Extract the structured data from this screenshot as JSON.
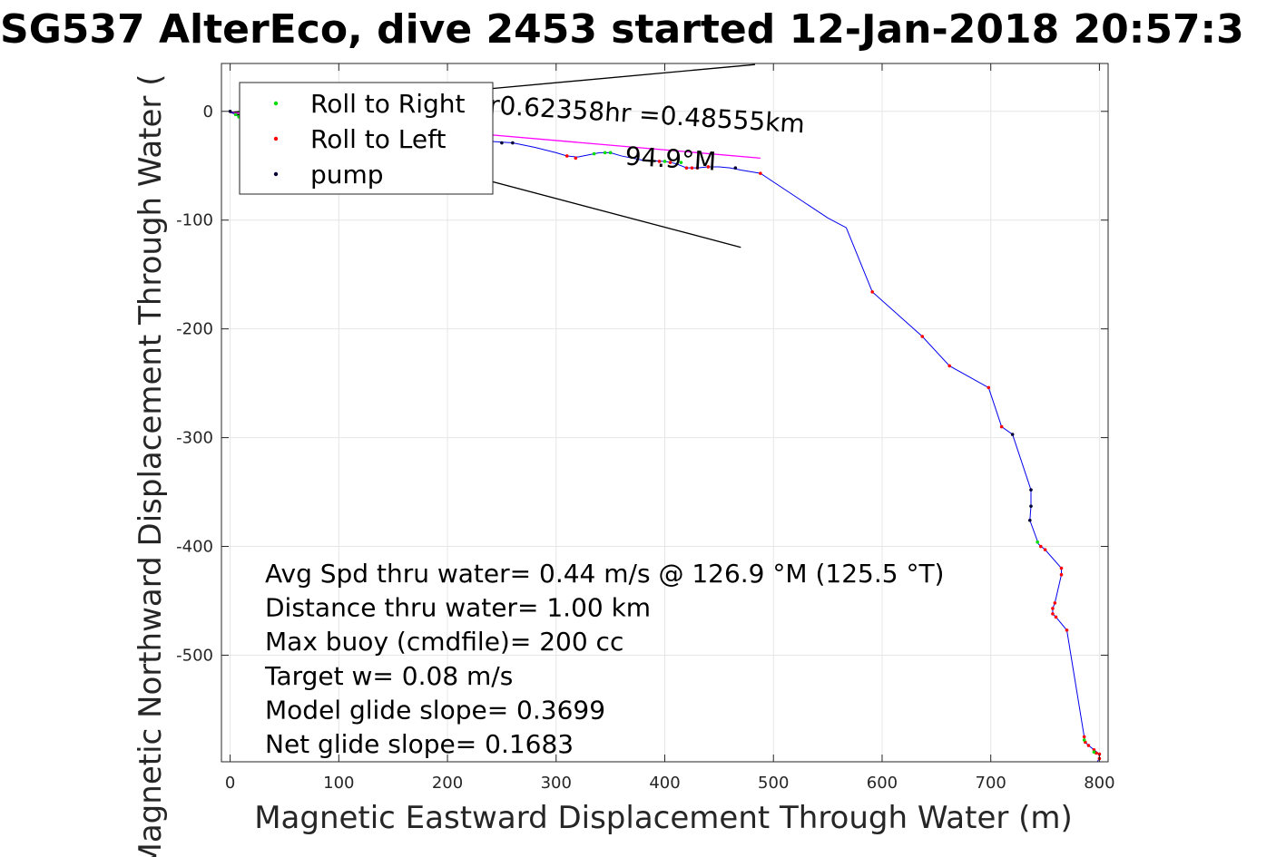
{
  "chart_data": {
    "type": "scatter",
    "title": "SG537 AlterEco, dive 2453 started 12-Jan-2018 20:57:3",
    "xlabel": "Magnetic Eastward Displacement Through Water (m)",
    "ylabel": "Magnetic Northward Displacement Through Water (",
    "xlim": [
      -8,
      808
    ],
    "ylim": [
      -598,
      44
    ],
    "xticks": [
      0,
      100,
      200,
      300,
      400,
      500,
      600,
      700,
      800
    ],
    "yticks": [
      0,
      -100,
      -200,
      -300,
      -400,
      -500
    ],
    "grid": true,
    "legend_position": "top-left",
    "legend": [
      {
        "label": "Roll to Right",
        "color": "#00dd00"
      },
      {
        "label": "Roll to Left",
        "color": "#ff0000"
      },
      {
        "label": "pump",
        "color": "#000033"
      }
    ],
    "series": [
      {
        "role": "track",
        "color": "#0000ee",
        "x": [
          0,
          5,
          8,
          12,
          20,
          40,
          80,
          120,
          160,
          200,
          230,
          260,
          280,
          300,
          310,
          320,
          330,
          340,
          350,
          360,
          380,
          400,
          410,
          420,
          430,
          440,
          450,
          460,
          470,
          488,
          550,
          567,
          591,
          637,
          662,
          698,
          710,
          720,
          737,
          737,
          736,
          744,
          750,
          765,
          765,
          759,
          757,
          757,
          760,
          770,
          786,
          787,
          790,
          795,
          800,
          800,
          798
        ],
        "y": [
          0,
          -3,
          -5,
          -1,
          -8,
          -12,
          -16,
          -19,
          -22,
          -25,
          -27,
          -29,
          -33,
          -38,
          -41,
          -42,
          -40,
          -38,
          -38,
          -41,
          -45,
          -46,
          -48,
          -52,
          -52,
          -51,
          -51,
          -52,
          -54,
          -57,
          -98,
          -107,
          -166,
          -207,
          -234,
          -254,
          -290,
          -297,
          -348,
          -363,
          -376,
          -398,
          -403,
          -420,
          -426,
          -452,
          -457,
          -462,
          -465,
          -477,
          -575,
          -580,
          -583,
          -587,
          -591,
          -595,
          -598
        ]
      },
      {
        "role": "roll-left",
        "color": "#ff0000",
        "x": [
          310,
          318,
          395,
          405,
          420,
          425,
          430,
          440,
          488,
          591,
          637,
          662,
          698,
          710,
          746,
          750,
          765,
          765,
          759,
          757,
          757,
          760,
          770,
          786,
          787,
          790,
          795,
          797,
          800,
          800
        ],
        "y": [
          -41,
          -43,
          -46,
          -47,
          -52,
          -52,
          -52,
          -51,
          -57,
          -166,
          -207,
          -234,
          -254,
          -290,
          -400,
          -403,
          -420,
          -426,
          -452,
          -457,
          -462,
          -465,
          -477,
          -575,
          -580,
          -583,
          -587,
          -590,
          -591,
          -595
        ]
      },
      {
        "role": "roll-right",
        "color": "#00dd00",
        "x": [
          5,
          8,
          335,
          345,
          350,
          400,
          415,
          743,
          786,
          795
        ],
        "y": [
          -3,
          -5,
          -39,
          -38,
          -38,
          -46,
          -47,
          -396,
          -578,
          -589
        ]
      },
      {
        "role": "pump",
        "color": "#000033",
        "x": [
          0,
          10,
          20,
          40,
          230,
          240,
          250,
          260,
          465,
          720,
          737,
          737,
          736
        ],
        "y": [
          0,
          -1,
          -2,
          -10,
          -28,
          -28,
          -29,
          -29,
          -52,
          -297,
          -348,
          -363,
          -376
        ]
      }
    ],
    "lines": [
      {
        "color": "#000000",
        "x": [
          0,
          483
        ],
        "y": [
          -1,
          43
        ]
      },
      {
        "color": "#000000",
        "x": [
          0,
          470
        ],
        "y": [
          -1,
          -125
        ]
      },
      {
        "color": "#ff00ff",
        "x": [
          0,
          488
        ],
        "y": [
          -1,
          -43
        ]
      }
    ],
    "annotations": [
      {
        "text": "r0.62358hr =0.48555km",
        "x": 238,
        "y": -2,
        "rotation": 3.5
      },
      {
        "text": "94.9°M",
        "x": 363,
        "y": -49,
        "rotation": 3.5
      }
    ],
    "stats": [
      "Avg Spd thru water=  0.44 m/s @ 126.9 °M (125.5 °T)",
      "Distance thru water=  1.00 km",
      "Max buoy (cmdfile)= 200 cc",
      "Target w= 0.08 m/s",
      "Model glide slope= 0.3699",
      "Net glide slope= 0.1683"
    ]
  }
}
